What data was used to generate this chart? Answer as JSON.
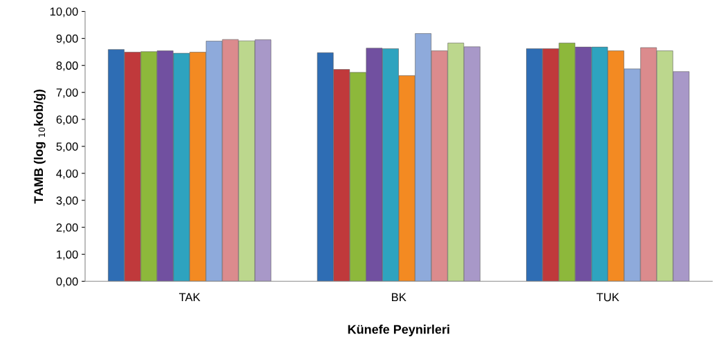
{
  "chart_data": {
    "type": "bar",
    "xlabel": "Künefe Peynirleri",
    "ylabel": "TAMB (log $_{10}$kob/g)",
    "categories": [
      "TAK",
      "BK",
      "TUK"
    ],
    "series": [
      {
        "color": "#2e6db4",
        "values": [
          8.59,
          8.47,
          8.62
        ]
      },
      {
        "color": "#c0393b",
        "values": [
          8.49,
          7.85,
          8.62
        ]
      },
      {
        "color": "#8db83b",
        "values": [
          8.51,
          7.74,
          8.83
        ]
      },
      {
        "color": "#7150a0",
        "values": [
          8.54,
          8.64,
          8.68
        ]
      },
      {
        "color": "#2ea3bf",
        "values": [
          8.45,
          8.62,
          8.68
        ]
      },
      {
        "color": "#f38a22",
        "values": [
          8.49,
          7.62,
          8.54
        ]
      },
      {
        "color": "#8eaadb",
        "values": [
          8.9,
          9.18,
          7.87
        ]
      },
      {
        "color": "#db8b8d",
        "values": [
          8.96,
          8.54,
          8.66
        ]
      },
      {
        "color": "#bcd78d",
        "values": [
          8.91,
          8.83,
          8.54
        ]
      },
      {
        "color": "#a898c8",
        "values": [
          8.95,
          8.69,
          7.77
        ]
      }
    ],
    "ylim": [
      0,
      10
    ],
    "yticks": [
      {
        "value": 0,
        "label": "0,00"
      },
      {
        "value": 1,
        "label": "1,00"
      },
      {
        "value": 2,
        "label": "2,00"
      },
      {
        "value": 3,
        "label": "3,00"
      },
      {
        "value": 4,
        "label": "4,00"
      },
      {
        "value": 5,
        "label": "5,00"
      },
      {
        "value": 6,
        "label": "6,00"
      },
      {
        "value": 7,
        "label": "7,00"
      },
      {
        "value": 8,
        "label": "8,00"
      },
      {
        "value": 9,
        "label": "9,00"
      },
      {
        "value": 10,
        "label": "10,00"
      }
    ],
    "grid": false,
    "legend": false
  }
}
